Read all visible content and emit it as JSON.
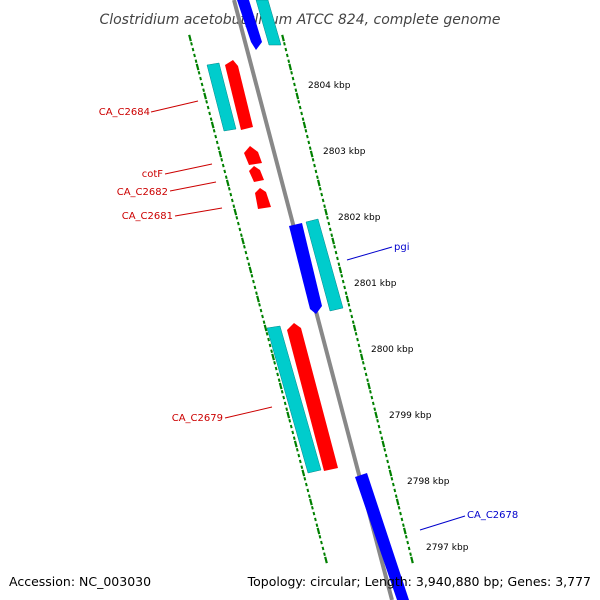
{
  "title": "Clostridium acetobutylicum ATCC 824, complete genome",
  "footer": {
    "accession": "Accession: NC_003030",
    "topology": "Topology: circular; Length: 3,940,880 bp; Genes: 3,777"
  },
  "colors": {
    "forward_cds": "#ff0000",
    "reverse_cds": "#0000ff",
    "orf": "#00cccc",
    "ruler_ticks": "#008000",
    "backbone": "#888888",
    "label_forward": "#cc0000",
    "label_reverse": "#0000cc"
  },
  "ruler_labels": [
    "2804 kbp",
    "2803 kbp",
    "2802 kbp",
    "2801 kbp",
    "2800 kbp",
    "2799 kbp",
    "2798 kbp",
    "2797 kbp"
  ],
  "gene_labels": [
    {
      "name": "CA_C2684",
      "strand": "forward"
    },
    {
      "name": "cotF",
      "strand": "forward"
    },
    {
      "name": "CA_C2682",
      "strand": "forward"
    },
    {
      "name": "CA_C2681",
      "strand": "forward"
    },
    {
      "name": "pgi",
      "strand": "reverse"
    },
    {
      "name": "CA_C2679",
      "strand": "forward"
    },
    {
      "name": "CA_C2678",
      "strand": "reverse"
    }
  ]
}
